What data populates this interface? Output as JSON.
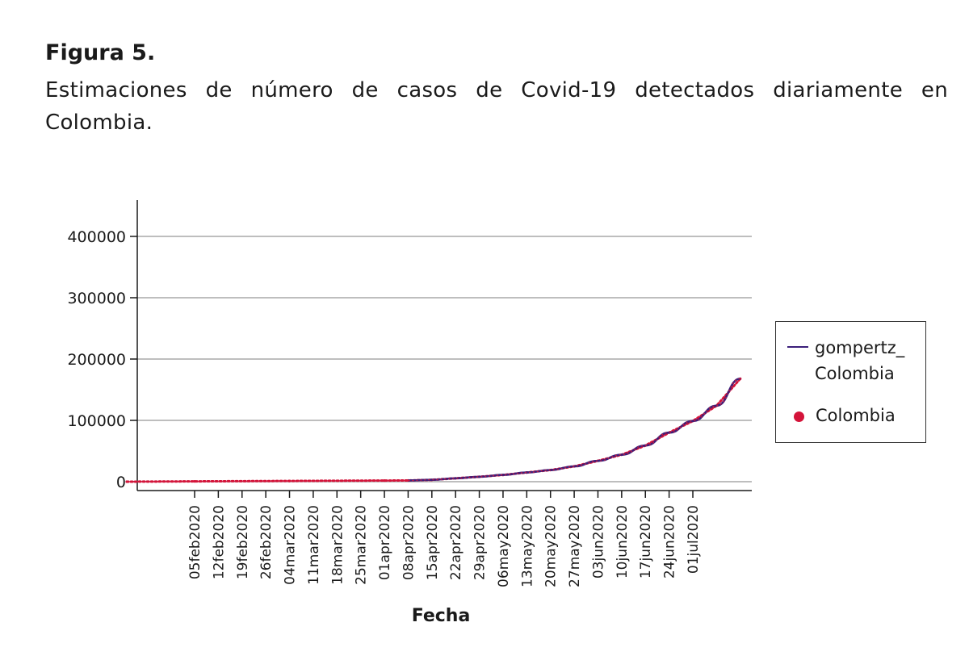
{
  "figure": {
    "label": "Figura 5.",
    "caption": "Estimaciones de número de casos de Covid-19 detectados diariamente en Colombia."
  },
  "chart_data": {
    "type": "line",
    "title": "",
    "xlabel": "Fecha",
    "ylabel": "",
    "ylim": [
      0,
      450000
    ],
    "yticks": [
      0,
      100000,
      200000,
      300000,
      400000
    ],
    "ytick_labels": [
      "0",
      "100000",
      "200000",
      "300000",
      "400000"
    ],
    "xlim": [
      "2020-01-16",
      "2020-07-22"
    ],
    "xticks": [
      "2020-02-05",
      "2020-02-12",
      "2020-02-19",
      "2020-02-26",
      "2020-03-04",
      "2020-03-11",
      "2020-03-18",
      "2020-03-25",
      "2020-04-01",
      "2020-04-08",
      "2020-04-15",
      "2020-04-22",
      "2020-04-29",
      "2020-05-06",
      "2020-05-13",
      "2020-05-20",
      "2020-05-27",
      "2020-06-03",
      "2020-06-10",
      "2020-06-17",
      "2020-06-24",
      "2020-07-01"
    ],
    "xtick_labels": [
      "05feb2020",
      "12feb2020",
      "19feb2020",
      "26feb2020",
      "04mar2020",
      "11mar2020",
      "18mar2020",
      "25mar2020",
      "01apr2020",
      "08apr2020",
      "15apr2020",
      "22apr2020",
      "29apr2020",
      "06may2020",
      "13may2020",
      "20may2020",
      "27may2020",
      "03jun2020",
      "10jun2020",
      "17jun2020",
      "24jun2020",
      "01jul2020"
    ],
    "grid": true,
    "legend_position": "right",
    "series": [
      {
        "name": "gompertz_ Colombia",
        "kind": "line",
        "color": "#3b1f7a",
        "x": [
          "2020-04-08",
          "2020-04-15",
          "2020-04-22",
          "2020-04-29",
          "2020-05-06",
          "2020-05-13",
          "2020-05-20",
          "2020-05-27",
          "2020-06-03",
          "2020-06-10",
          "2020-06-17",
          "2020-06-24",
          "2020-07-01",
          "2020-07-08",
          "2020-07-15"
        ],
        "y": [
          2000,
          3000,
          5500,
          8000,
          11000,
          15000,
          19000,
          25000,
          34000,
          44000,
          59000,
          80000,
          99000,
          124000,
          168000
        ]
      },
      {
        "name": "Colombia",
        "kind": "points",
        "color": "#d4143a",
        "x": [
          "2020-01-16",
          "2020-02-05",
          "2020-03-04",
          "2020-04-01",
          "2020-04-08",
          "2020-04-15",
          "2020-04-22",
          "2020-04-29",
          "2020-05-06",
          "2020-05-13",
          "2020-05-20",
          "2020-05-27",
          "2020-06-03",
          "2020-06-10",
          "2020-06-17",
          "2020-06-24",
          "2020-07-01",
          "2020-07-08",
          "2020-07-15"
        ],
        "y": [
          0,
          500,
          1200,
          1800,
          2000,
          3000,
          5500,
          8000,
          11000,
          15000,
          19000,
          25000,
          34000,
          44000,
          59000,
          80000,
          99000,
          124000,
          168000
        ]
      }
    ]
  }
}
